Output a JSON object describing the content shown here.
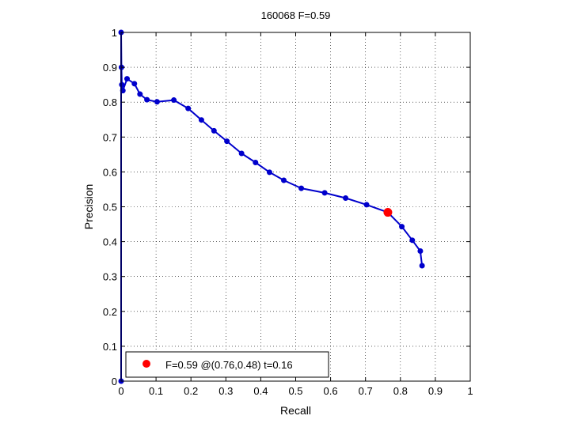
{
  "chart_data": {
    "type": "line",
    "title": "160068 F=0.59",
    "xlabel": "Recall",
    "ylabel": "Precision",
    "xlim": [
      0,
      1
    ],
    "ylim": [
      0,
      1
    ],
    "xticks": [
      "0",
      "0.1",
      "0.2",
      "0.3",
      "0.4",
      "0.5",
      "0.6",
      "0.7",
      "0.8",
      "0.9",
      "1"
    ],
    "yticks": [
      "0",
      "0.1",
      "0.2",
      "0.3",
      "0.4",
      "0.5",
      "0.6",
      "0.7",
      "0.8",
      "0.9",
      "1"
    ],
    "grid": true,
    "line_color": "#0000cc",
    "series": [
      {
        "x": [
          0.0,
          0.0,
          0.001,
          0.002,
          0.005,
          0.017,
          0.038,
          0.054,
          0.074,
          0.103,
          0.151,
          0.192,
          0.23,
          0.266,
          0.303,
          0.345,
          0.385,
          0.425,
          0.466,
          0.516,
          0.583,
          0.643,
          0.703,
          0.764,
          0.804,
          0.834,
          0.857,
          0.862
        ],
        "y": [
          0.0,
          1.0,
          0.9,
          0.85,
          0.833,
          0.867,
          0.853,
          0.823,
          0.807,
          0.801,
          0.806,
          0.782,
          0.749,
          0.718,
          0.688,
          0.653,
          0.627,
          0.599,
          0.576,
          0.553,
          0.54,
          0.525,
          0.506,
          0.484,
          0.443,
          0.404,
          0.373,
          0.331
        ]
      }
    ],
    "highlight": {
      "x": 0.764,
      "y": 0.484,
      "color": "#ff0000"
    },
    "legend": {
      "position": "bottom-left",
      "label": "F=0.59 @(0.76,0.48) t=0.16"
    }
  }
}
